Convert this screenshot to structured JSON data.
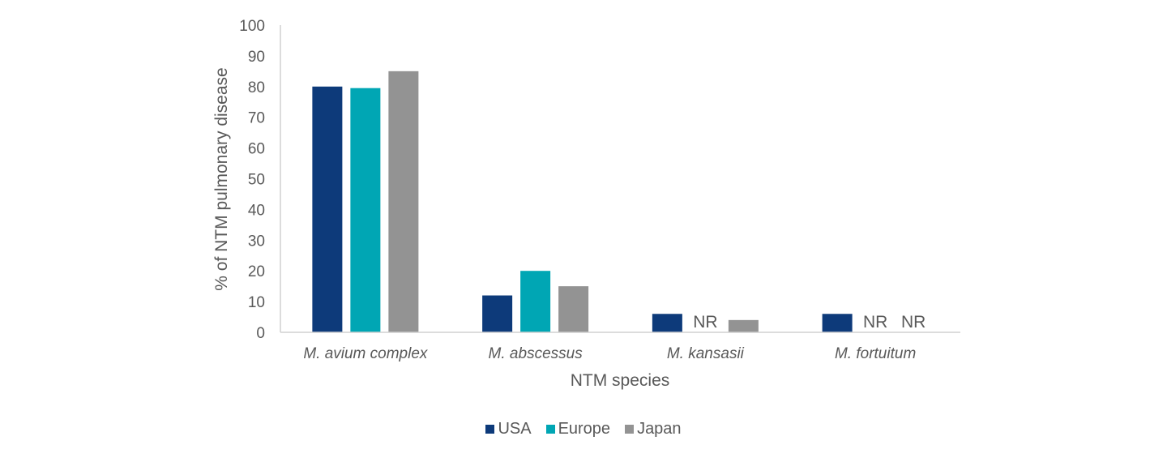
{
  "chart_data": {
    "type": "bar",
    "xlabel": "NTM species",
    "ylabel": "% of NTM pulmonary disease",
    "ylim": [
      0,
      100
    ],
    "yticks": [
      0,
      10,
      20,
      30,
      40,
      50,
      60,
      70,
      80,
      90,
      100
    ],
    "categories": [
      "M. avium complex",
      "M. abscessus",
      "M. kansasii",
      "M. fortuitum"
    ],
    "series": [
      {
        "name": "USA",
        "color": "#0d3a7a",
        "values": [
          80,
          12,
          6,
          6
        ]
      },
      {
        "name": "Europe",
        "color": "#00a6b4",
        "values": [
          79.5,
          20,
          null,
          null
        ]
      },
      {
        "name": "Japan",
        "color": "#939393",
        "values": [
          85,
          15,
          4,
          null
        ]
      }
    ],
    "missing_label": "NR",
    "grid": false,
    "legend_position": "bottom"
  }
}
